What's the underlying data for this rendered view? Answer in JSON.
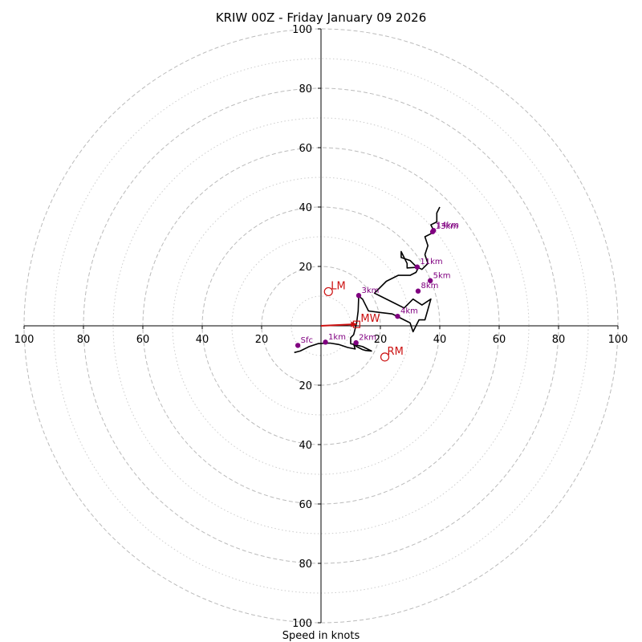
{
  "chart_data": {
    "type": "hodograph",
    "title": "KRIW 00Z - Friday January 09 2026",
    "xlabel": "Speed in knots",
    "units": "knots",
    "range": [
      -100,
      100
    ],
    "rings_major": [
      20,
      40,
      60,
      80,
      100
    ],
    "rings_minor": [
      10,
      30,
      50,
      70,
      90
    ],
    "tick_labels": {
      "x": [
        {
          "value": -100,
          "label": "100"
        },
        {
          "value": -80,
          "label": "80"
        },
        {
          "value": -60,
          "label": "60"
        },
        {
          "value": -40,
          "label": "40"
        },
        {
          "value": -20,
          "label": "20"
        },
        {
          "value": 20,
          "label": "20"
        },
        {
          "value": 40,
          "label": "40"
        },
        {
          "value": 60,
          "label": "60"
        },
        {
          "value": 80,
          "label": "80"
        },
        {
          "value": 100,
          "label": "100"
        }
      ],
      "y": [
        {
          "value": 100,
          "label": "100"
        },
        {
          "value": 80,
          "label": "80"
        },
        {
          "value": 60,
          "label": "60"
        },
        {
          "value": 40,
          "label": "40"
        },
        {
          "value": 20,
          "label": "20"
        },
        {
          "value": -20,
          "label": "20"
        },
        {
          "value": -40,
          "label": "40"
        },
        {
          "value": -60,
          "label": "60"
        },
        {
          "value": -80,
          "label": "80"
        },
        {
          "value": -100,
          "label": "100"
        }
      ]
    },
    "trace": [
      [
        -9,
        -9
      ],
      [
        -7,
        -8.5
      ],
      [
        -4,
        -7
      ],
      [
        -1,
        -6
      ],
      [
        3,
        -5.8
      ],
      [
        6,
        -6.3
      ],
      [
        9,
        -7.3
      ],
      [
        11.5,
        -7.8
      ],
      [
        11,
        -6.2
      ],
      [
        12,
        -7
      ],
      [
        14,
        -8
      ],
      [
        15,
        -8.3
      ],
      [
        17,
        -8.5
      ],
      [
        14,
        -7
      ],
      [
        10,
        -6
      ],
      [
        10,
        -4
      ],
      [
        11,
        -3
      ],
      [
        12,
        1
      ],
      [
        12.5,
        5
      ],
      [
        12.7,
        10
      ],
      [
        14,
        9
      ],
      [
        16,
        5
      ],
      [
        20,
        4.5
      ],
      [
        24,
        4
      ],
      [
        26,
        3
      ],
      [
        28,
        2
      ],
      [
        30,
        1
      ],
      [
        31,
        -2
      ],
      [
        33,
        2
      ],
      [
        35,
        2
      ],
      [
        37,
        9
      ],
      [
        34,
        7
      ],
      [
        31,
        9
      ],
      [
        28,
        6
      ],
      [
        24,
        8
      ],
      [
        20,
        10
      ],
      [
        18,
        11
      ],
      [
        22,
        15
      ],
      [
        26,
        17
      ],
      [
        30,
        17
      ],
      [
        32,
        18
      ],
      [
        33,
        20
      ],
      [
        32.5,
        19.7
      ],
      [
        29,
        19.5
      ],
      [
        29,
        21
      ],
      [
        27,
        25
      ],
      [
        27,
        23
      ],
      [
        30,
        22
      ],
      [
        32,
        20
      ],
      [
        34,
        19
      ],
      [
        36,
        21
      ],
      [
        35,
        24
      ],
      [
        36,
        27
      ],
      [
        35,
        30
      ],
      [
        37,
        31
      ],
      [
        37.5,
        31.5
      ],
      [
        38,
        32
      ],
      [
        37,
        34
      ],
      [
        39,
        35
      ],
      [
        39,
        38
      ],
      [
        40,
        40
      ]
    ],
    "height_markers": [
      {
        "label": "Sfc",
        "u": -7.8,
        "v": -6.6
      },
      {
        "label": "1km",
        "u": 1.5,
        "v": -5.5
      },
      {
        "label": "2km",
        "u": 11.8,
        "v": -5.7
      },
      {
        "label": "3km",
        "u": 12.7,
        "v": 10.2
      },
      {
        "label": "4km",
        "u": 25.8,
        "v": 3.2
      },
      {
        "label": "5km",
        "u": 36.8,
        "v": 15.2
      },
      {
        "label": "8km",
        "u": 32.7,
        "v": 11.7
      },
      {
        "label": "11km",
        "u": 32.4,
        "v": 19.8
      },
      {
        "label": "13km",
        "u": 37.6,
        "v": 31.7
      },
      {
        "label": "14km",
        "u": 37.9,
        "v": 32.1
      }
    ],
    "storm_motion": [
      {
        "label": "LM",
        "u": 2.5,
        "v": 11.5
      },
      {
        "label": "RM",
        "u": 21.5,
        "v": -10.5
      }
    ],
    "mean_wind": {
      "label": "MW",
      "u": 12,
      "v": 0.5
    },
    "colors": {
      "trace": "#000000",
      "markers": "#800080",
      "storm": "#cc1111",
      "grid": "#bbbbbb"
    }
  }
}
